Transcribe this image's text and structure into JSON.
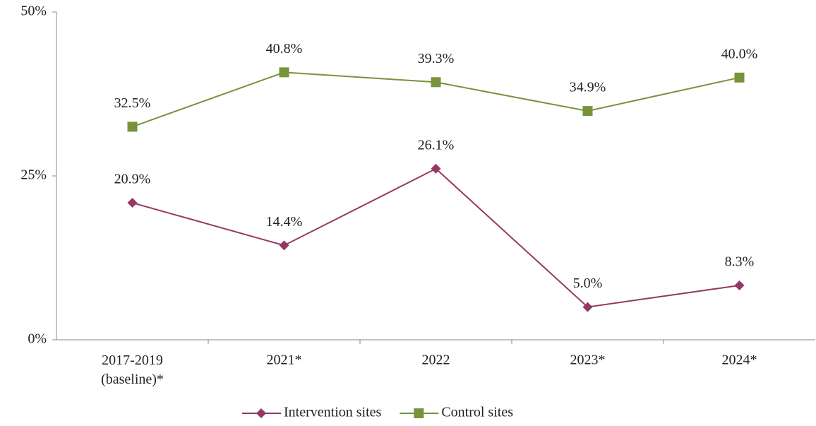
{
  "chart_data": {
    "type": "line",
    "categories": [
      "2017-2019 (baseline)*",
      "2021*",
      "2022",
      "2023*",
      "2024*"
    ],
    "series": [
      {
        "name": "Intervention sites",
        "color": "#953864",
        "marker": "diamond",
        "values": [
          20.9,
          14.4,
          26.1,
          5.0,
          8.3
        ],
        "value_labels": [
          "20.9%",
          "14.4%",
          "26.1%",
          "5.0%",
          "8.3%"
        ]
      },
      {
        "name": "Control sites",
        "color": "#77933c",
        "marker": "square",
        "values": [
          32.5,
          40.8,
          39.3,
          34.9,
          40.0
        ],
        "value_labels": [
          "32.5%",
          "40.8%",
          "39.3%",
          "34.9%",
          "40.0%"
        ]
      }
    ],
    "ylim": [
      0,
      50
    ],
    "yticks": [
      {
        "value": 0,
        "label": "0%"
      },
      {
        "value": 25,
        "label": "25%"
      },
      {
        "value": 50,
        "label": "50%"
      }
    ],
    "grid": false,
    "legend": "bottom"
  }
}
